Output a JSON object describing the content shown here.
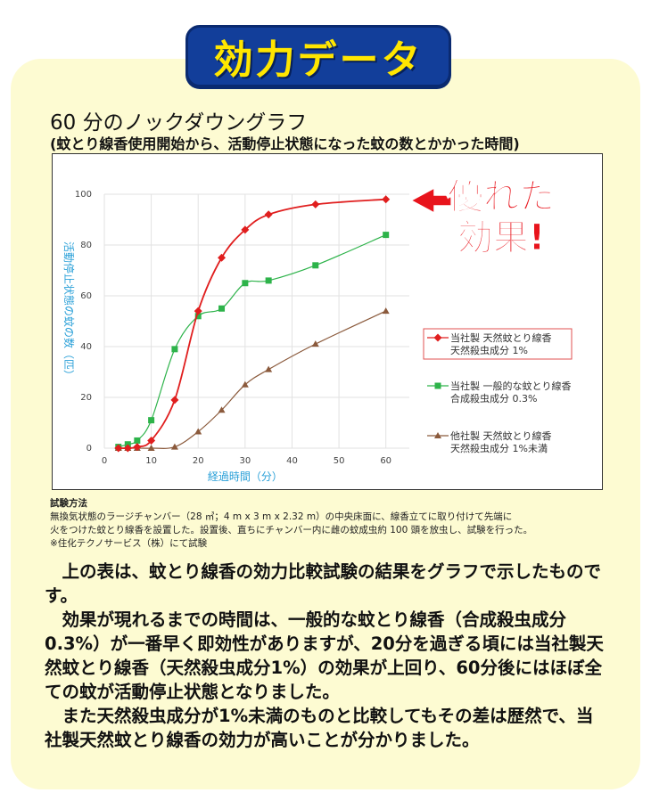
{
  "banner": {
    "label": "効力データ"
  },
  "header": {
    "title": "60 分のノックダウングラフ",
    "subtitle": "(蚊とり線香使用開始から、活動停止状態になった蚊の数とかかった時間)"
  },
  "callout": {
    "line1": "優れた",
    "line2": "効果!"
  },
  "chart_data": {
    "type": "line",
    "xlabel": "経過時間（分）",
    "ylabel": "活動停止状態の蚊の数（匹）",
    "xlim": [
      0,
      65
    ],
    "ylim": [
      0,
      100
    ],
    "xticks": [
      0,
      10,
      20,
      30,
      40,
      50,
      60
    ],
    "yticks": [
      0,
      20,
      40,
      60,
      80,
      100
    ],
    "grid": true,
    "legend_position": "right",
    "series": [
      {
        "name": "当社製 天然蚊とり線香 天然殺虫成分 1%",
        "legend_lines": [
          "当社製 天然蚊とり線香",
          "天然殺虫成分 1%"
        ],
        "color": "#e01e1e",
        "marker": "diamond",
        "x": [
          3,
          5,
          7,
          10,
          15,
          20,
          25,
          30,
          35,
          45,
          60
        ],
        "y": [
          0,
          0,
          0.5,
          3,
          19,
          54,
          75,
          86,
          92,
          96,
          98
        ]
      },
      {
        "name": "当社製 一般的な蚊とり線香 合成殺虫成分 0.3%",
        "legend_lines": [
          "当社製 一般的な蚊とり線香",
          "合成殺虫成分 0.3%"
        ],
        "color": "#2db34a",
        "marker": "square",
        "x": [
          3,
          5,
          7,
          10,
          15,
          20,
          25,
          30,
          35,
          45,
          60
        ],
        "y": [
          0.5,
          1.5,
          3,
          11,
          39,
          52,
          55,
          65,
          66,
          72,
          84
        ]
      },
      {
        "name": "他社製 天然蚊とり線香 天然殺虫成分 1%未満",
        "legend_lines": [
          "他社製 天然蚊とり線香",
          "天然殺虫成分 1%未満"
        ],
        "color": "#8b5a3c",
        "marker": "triangle",
        "x": [
          3,
          5,
          7,
          10,
          15,
          20,
          25,
          30,
          35,
          45,
          60
        ],
        "y": [
          0,
          0,
          0,
          0,
          0.5,
          6.5,
          15,
          25,
          31,
          41,
          54
        ]
      }
    ]
  },
  "method": {
    "title": "試験方法",
    "line1": "無換気状態のラージチャンバー（28 ㎥；4 m x 3 m x 2.32 m）の中央床面に、線香立てに取り付けて先端に",
    "line2": "火をつけた蚊とり線香を設置した。設置後、直ちにチャンバー内に雌の蚊成虫約 100 頭を放虫し、試験を行った。",
    "line3": "※住化テクノサービス（株）にて試験"
  },
  "body": {
    "p1": "上の表は、蚊とり線香の効力比較試験の結果をグラフで示したものです。",
    "p2": "効果が現れるまでの時間は、一般的な蚊とり線香（合成殺虫成分0.3%）が一番早く即効性がありますが、20分を過ぎる頃には当社製天然蚊とり線香（天然殺虫成分1%）の効果が上回り、60分後にはほぼ全ての蚊が活動停止状態となりました。",
    "p3": "また天然殺虫成分が1%未満のものと比較してもその差は歴然で、当社製天然蚊とり線香の効力が高いことが分かりました。"
  }
}
